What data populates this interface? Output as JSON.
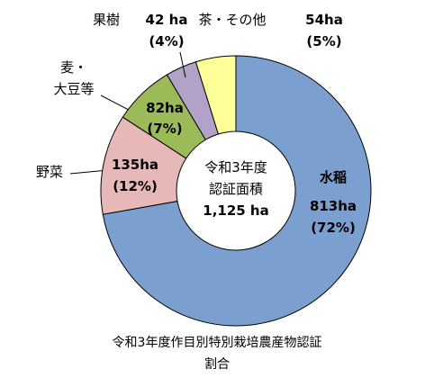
{
  "chart_data": {
    "type": "pie",
    "donut": true,
    "title": "令和3年度作目別特別栽培農産物認証割合",
    "center_lines": [
      "令和3年度",
      "認証面積",
      "1,125 ha"
    ],
    "categories": [
      "水稲",
      "野菜",
      "麦・\n大豆等",
      "果樹",
      "茶・その他"
    ],
    "values": [
      813,
      135,
      82,
      42,
      54
    ],
    "value_labels": [
      "813ha",
      "135ha",
      "82ha",
      "42 ha",
      "54ha"
    ],
    "percent_labels": [
      "(72%)",
      "(12%)",
      "(7%)",
      "(4%)",
      "(5%)"
    ],
    "colors": [
      "#7ba0d0",
      "#e6b8b7",
      "#9bbb59",
      "#b3a2c7",
      "#ffff99"
    ]
  }
}
